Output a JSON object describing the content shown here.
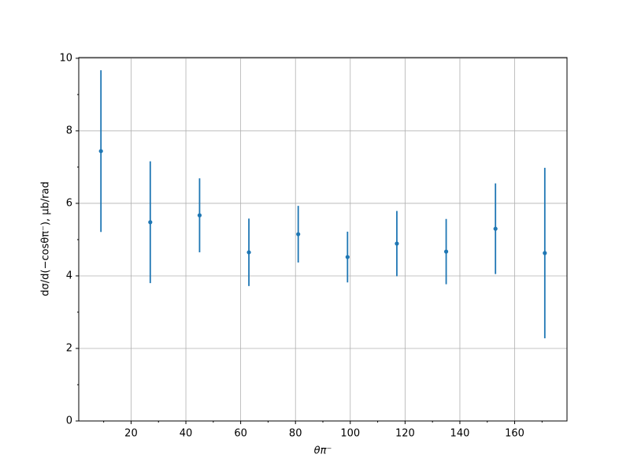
{
  "chart_data": {
    "type": "errorbar",
    "xlabel": "θπ⁻",
    "ylabel": "dσ/d(−cosθπ⁻), μb/rad",
    "x": [
      9,
      27,
      45,
      63,
      81,
      99,
      117,
      135,
      153,
      171
    ],
    "values": [
      7.44,
      5.48,
      5.67,
      4.65,
      5.15,
      4.52,
      4.89,
      4.67,
      5.3,
      4.63
    ],
    "errors": [
      2.23,
      1.68,
      1.02,
      0.93,
      0.78,
      0.7,
      0.9,
      0.9,
      1.25,
      2.35
    ],
    "color": "#1f77b4",
    "xlim": [
      0.9,
      179.1
    ],
    "ylim": [
      0,
      10.02
    ],
    "xticks": [
      20,
      40,
      60,
      80,
      100,
      120,
      140,
      160
    ],
    "yticks": [
      0,
      2,
      4,
      6,
      8,
      10
    ],
    "xminorticks": [
      10,
      30,
      50,
      70,
      90,
      110,
      130,
      150,
      170
    ],
    "yminorticks": [
      1,
      3,
      5,
      7,
      9
    ],
    "grid": true
  }
}
